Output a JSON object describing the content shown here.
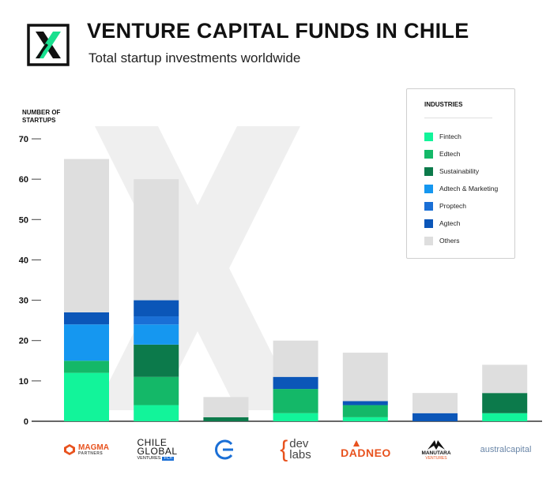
{
  "header": {
    "title": "VENTURE CAPITAL FUNDS IN CHILE",
    "subtitle": "Total startup investments worldwide"
  },
  "brands": {
    "magma": {
      "name": "MAGMA",
      "sub": "PARTNERS"
    },
    "chileglobal": {
      "line1": "CHILE",
      "line2": "GLOBAL",
      "line3": "VENTURES",
      "badge": "FCh"
    },
    "devlabs": {
      "brace": "{",
      "line1": "dev",
      "line2": "labs"
    },
    "dadneo": {
      "name": "DADNEO"
    },
    "manutara": {
      "name": "MANUTARA",
      "sub": "VENTURES"
    },
    "australcapital": {
      "name": "australcapital"
    }
  },
  "chart_data": {
    "type": "bar",
    "stacked": true,
    "title": "VENTURE CAPITAL FUNDS IN CHILE",
    "subtitle": "Total startup investments worldwide",
    "ylabel": "NUMBER OF STARTUPS",
    "ylim": [
      0,
      70
    ],
    "yticks": [
      0,
      10,
      20,
      30,
      40,
      50,
      60,
      70
    ],
    "legend_title": "INDUSTRIES",
    "legend_position": "top-right",
    "categories": [
      "Magma Partners",
      "Chile Global Ventures",
      "G",
      "Dev Labs",
      "Dadneo",
      "Manutara Ventures",
      "Austral Capital"
    ],
    "series": [
      {
        "name": "Fintech",
        "color": "#12f49a",
        "values": [
          12,
          4,
          0,
          2,
          1,
          0,
          2
        ]
      },
      {
        "name": "Edtech",
        "color": "#14b868",
        "values": [
          3,
          7,
          0,
          6,
          3,
          0,
          0
        ]
      },
      {
        "name": "Sustainability",
        "color": "#0c7a4b",
        "values": [
          0,
          8,
          1,
          0,
          0,
          0,
          5
        ]
      },
      {
        "name": "Adtech & Marketing",
        "color": "#1597f0",
        "values": [
          9,
          5,
          0,
          0,
          0,
          0,
          0
        ]
      },
      {
        "name": "Proptech",
        "color": "#1a6fd6",
        "values": [
          0,
          2,
          0,
          0,
          0,
          0,
          0
        ]
      },
      {
        "name": "Agtech",
        "color": "#0b56b8",
        "values": [
          3,
          4,
          0,
          3,
          1,
          2,
          0
        ]
      },
      {
        "name": "Others",
        "color": "#dedede",
        "values": [
          38,
          30,
          5,
          9,
          12,
          5,
          7
        ]
      }
    ]
  }
}
